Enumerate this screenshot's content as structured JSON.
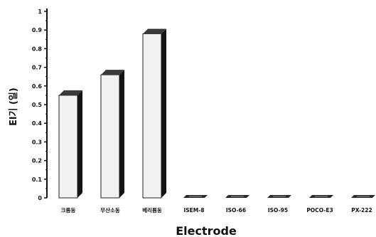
{
  "chart_data": {
    "type": "bar",
    "title": "",
    "xlabel": "Electrode",
    "ylabel": "El기 (일)",
    "ylim": [
      0,
      1
    ],
    "yticks": [
      "0",
      "0.1",
      "0.2",
      "0.3",
      "0.4",
      "0.5",
      "0.6",
      "0.7",
      "0.8",
      "0.9",
      "1"
    ],
    "categories": [
      "크롬동",
      "무산소동",
      "베리륨동",
      "ISEM-8",
      "ISO-66",
      "ISO-95",
      "POCO-E3",
      "PX-222"
    ],
    "values": [
      0.55,
      0.66,
      0.88,
      0.01,
      0.01,
      0.01,
      0.01,
      0.01
    ],
    "grid": false,
    "legend": "none",
    "colors": {
      "bar_face": "#f2f2f2",
      "bar_side": "#141414",
      "bar_top": "#3a3a3a",
      "axis": "#111111"
    }
  }
}
